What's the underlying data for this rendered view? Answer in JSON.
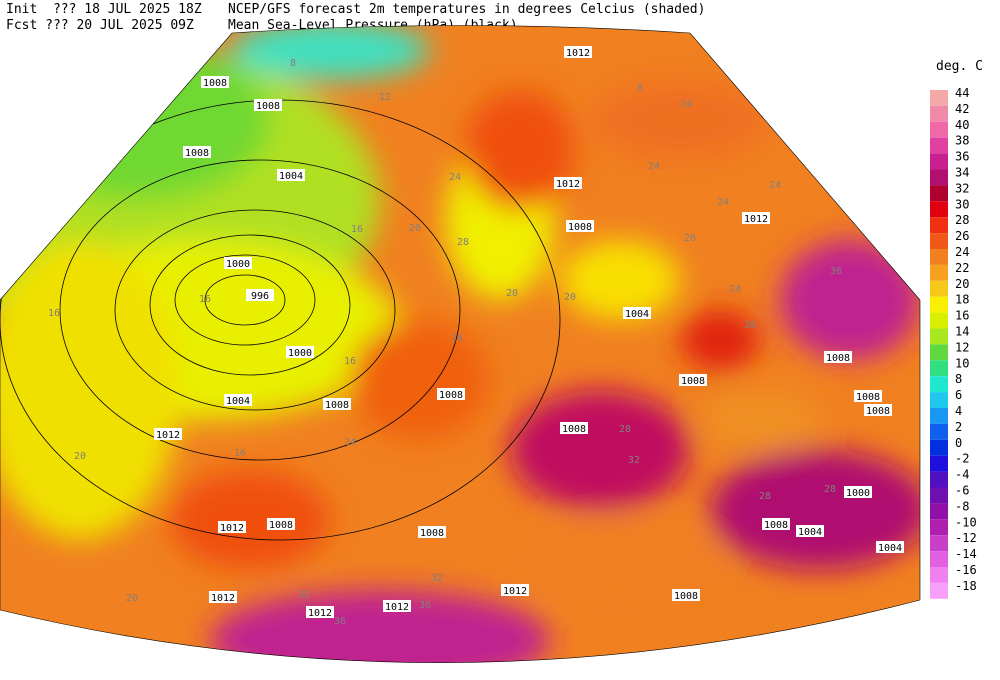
{
  "header": {
    "init": "Init  ??? 18 JUL 2025 18Z",
    "fcst": "Fcst ??? 20 JUL 2025 09Z",
    "title_line1": "NCEP/GFS forecast 2m temperatures in degrees Celcius (shaded)",
    "title_line2": "Mean Sea-Level Pressure (hPa) (black)."
  },
  "colorbar": {
    "unit": "deg. C",
    "items": [
      {
        "value": 44,
        "color": "#f4a8a8"
      },
      {
        "value": 42,
        "color": "#f088a8"
      },
      {
        "value": 40,
        "color": "#f068a8"
      },
      {
        "value": 38,
        "color": "#e040a0"
      },
      {
        "value": 36,
        "color": "#c82090"
      },
      {
        "value": 34,
        "color": "#b01070"
      },
      {
        "value": 32,
        "color": "#b00030"
      },
      {
        "value": 30,
        "color": "#e00010"
      },
      {
        "value": 28,
        "color": "#f03010"
      },
      {
        "value": 26,
        "color": "#f05818"
      },
      {
        "value": 24,
        "color": "#f08020"
      },
      {
        "value": 22,
        "color": "#f8a020"
      },
      {
        "value": 20,
        "color": "#f8c818"
      },
      {
        "value": 18,
        "color": "#f8f000"
      },
      {
        "value": 16,
        "color": "#d8f000"
      },
      {
        "value": 14,
        "color": "#a8e820"
      },
      {
        "value": 12,
        "color": "#60d840"
      },
      {
        "value": 10,
        "color": "#30e080"
      },
      {
        "value": 8,
        "color": "#20e8d0"
      },
      {
        "value": 6,
        "color": "#20c8f0"
      },
      {
        "value": 4,
        "color": "#1898f0"
      },
      {
        "value": 2,
        "color": "#1060f0"
      },
      {
        "value": 0,
        "color": "#0030e0"
      },
      {
        "value": -2,
        "color": "#2010e0"
      },
      {
        "value": -4,
        "color": "#5010c0"
      },
      {
        "value": -6,
        "color": "#7010b0"
      },
      {
        "value": -8,
        "color": "#9010a8"
      },
      {
        "value": -10,
        "color": "#b020b0"
      },
      {
        "value": -12,
        "color": "#c840c8"
      },
      {
        "value": -14,
        "color": "#e060e0"
      },
      {
        "value": -16,
        "color": "#f080f0"
      },
      {
        "value": -18,
        "color": "#f8a0f8"
      }
    ]
  },
  "pressure_labels": [
    1008,
    1008,
    1008,
    1004,
    1000,
    996,
    1000,
    1004,
    1008,
    1012,
    1008,
    1008,
    1008,
    1012,
    1008,
    1012,
    1004,
    1008,
    1008,
    1008,
    1000,
    1004,
    1008,
    1004,
    1012,
    1008,
    1008,
    1012,
    1012,
    1012,
    1012,
    1008,
    1012
  ],
  "temperature_labels": [
    8,
    12,
    8,
    24,
    24,
    24,
    24,
    20,
    16,
    16,
    16,
    20,
    16,
    24,
    24,
    28,
    36,
    28,
    32,
    24,
    20,
    20,
    28,
    20,
    24,
    16,
    28,
    28,
    32,
    32,
    36,
    36,
    20
  ]
}
